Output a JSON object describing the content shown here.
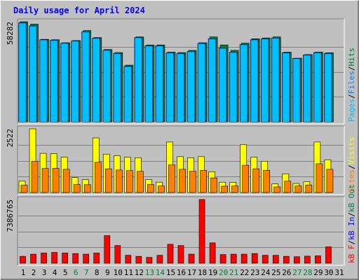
{
  "chart_data": [
    {
      "type": "bar",
      "title": "Daily usage for April 2024",
      "panel": "hits-files-pages",
      "ytick": "58282",
      "ylabel_parts": [
        "Pages",
        "Files",
        "Hits"
      ],
      "categories": [
        "1",
        "2",
        "3",
        "4",
        "5",
        "6",
        "7",
        "8",
        "9",
        "10",
        "11",
        "12",
        "13",
        "14",
        "15",
        "16",
        "17",
        "18",
        "19",
        "20",
        "21",
        "22",
        "23",
        "24",
        "25",
        "26",
        "27",
        "28",
        "29",
        "30",
        "31"
      ],
      "ylim": [
        0,
        58282
      ],
      "series": [
        {
          "name": "Hits",
          "values": [
            58282,
            56882,
            48020,
            47786,
            46036,
            47320,
            53152,
            49070,
            42072,
            40322,
            33000,
            49420,
            44752,
            44752,
            40554,
            40322,
            41604,
            46036,
            49420,
            44752,
            41604,
            45802,
            48370,
            48836,
            49420,
            40554,
            37054,
            39154,
            40554,
            40204,
            0
          ]
        },
        {
          "name": "Files",
          "values": [
            57582,
            55832,
            47786,
            47552,
            45802,
            47086,
            52452,
            48720,
            41722,
            39854,
            32300,
            49070,
            44286,
            44286,
            40204,
            39854,
            41020,
            45686,
            48370,
            42886,
            40554,
            44986,
            47786,
            48370,
            48836,
            40204,
            36936,
            38920,
            40322,
            39854,
            0
          ]
        },
        {
          "name": "Pages",
          "values": [
            57582,
            55832,
            47786,
            47552,
            45802,
            47086,
            52452,
            48720,
            41722,
            39854,
            32300,
            49070,
            44286,
            44286,
            40204,
            39854,
            41020,
            45686,
            48370,
            42886,
            40554,
            44986,
            47786,
            48370,
            48836,
            40204,
            36936,
            38920,
            40322,
            39854,
            0
          ]
        }
      ],
      "colors": {
        "Hits": "#008040",
        "Files": "#0080ff",
        "Pages": "#00c0ff"
      }
    },
    {
      "type": "bar",
      "panel": "visits-sites",
      "ytick": "2522",
      "ylabel_parts": [
        "Sites",
        "Visits"
      ],
      "categories": [
        "1",
        "2",
        "3",
        "4",
        "5",
        "6",
        "7",
        "8",
        "9",
        "10",
        "11",
        "12",
        "13",
        "14",
        "15",
        "16",
        "17",
        "18",
        "19",
        "20",
        "21",
        "22",
        "23",
        "24",
        "25",
        "26",
        "27",
        "28",
        "29",
        "30",
        "31"
      ],
      "ylim": [
        0,
        2522
      ],
      "series": [
        {
          "name": "Visits",
          "values": [
            450,
            2522,
            1550,
            1538,
            1400,
            590,
            510,
            2160,
            1518,
            1450,
            1398,
            1378,
            510,
            410,
            1998,
            1418,
            1378,
            1418,
            820,
            410,
            400,
            1891,
            1398,
            1238,
            340,
            740,
            358,
            430,
            1998,
            1298,
            0
          ]
        },
        {
          "name": "Sites",
          "values": [
            290,
            1238,
            950,
            958,
            918,
            318,
            310,
            1198,
            938,
            890,
            868,
            838,
            318,
            258,
            1098,
            918,
            838,
            878,
            578,
            250,
            258,
            1078,
            938,
            878,
            220,
            448,
            258,
            298,
            1138,
            918,
            0
          ]
        }
      ],
      "colors": {
        "Visits": "#ffff00",
        "Sites": "#ff8000"
      }
    },
    {
      "type": "bar",
      "panel": "kbytes",
      "ytick": "7386765",
      "ylabel_parts": [
        "kB F",
        "kB In",
        "kB Out"
      ],
      "categories": [
        "1",
        "2",
        "3",
        "4",
        "5",
        "6",
        "7",
        "8",
        "9",
        "10",
        "11",
        "12",
        "13",
        "14",
        "15",
        "16",
        "17",
        "18",
        "19",
        "20",
        "21",
        "22",
        "23",
        "24",
        "25",
        "26",
        "27",
        "28",
        "29",
        "30",
        "31"
      ],
      "ylim": [
        0,
        7386765
      ],
      "series": [
        {
          "name": "kB F",
          "values": [
            800000,
            1050000,
            1180000,
            1250000,
            1180000,
            1120000,
            1050000,
            1180000,
            3200000,
            2050000,
            920000,
            800000,
            680000,
            920000,
            2200000,
            2050000,
            1050000,
            7386765,
            2360000,
            1000000,
            1050000,
            1050000,
            1120000,
            920000,
            920000,
            800000,
            750000,
            820000,
            860000,
            1900000,
            0
          ]
        }
      ],
      "colors": {
        "kB F": "#ff0000"
      }
    }
  ],
  "xlabels": [
    {
      "text": "1",
      "weekend": false
    },
    {
      "text": "2",
      "weekend": false
    },
    {
      "text": "3",
      "weekend": false
    },
    {
      "text": "4",
      "weekend": false
    },
    {
      "text": "5",
      "weekend": false
    },
    {
      "text": "6",
      "weekend": true
    },
    {
      "text": "7",
      "weekend": true
    },
    {
      "text": "8",
      "weekend": false
    },
    {
      "text": "9",
      "weekend": false
    },
    {
      "text": "10",
      "weekend": false
    },
    {
      "text": "11",
      "weekend": false
    },
    {
      "text": "12",
      "weekend": false
    },
    {
      "text": "13",
      "weekend": true
    },
    {
      "text": "14",
      "weekend": true
    },
    {
      "text": "15",
      "weekend": false
    },
    {
      "text": "16",
      "weekend": false
    },
    {
      "text": "17",
      "weekend": false
    },
    {
      "text": "18",
      "weekend": false
    },
    {
      "text": "19",
      "weekend": false
    },
    {
      "text": "20",
      "weekend": true
    },
    {
      "text": "21",
      "weekend": true
    },
    {
      "text": "22",
      "weekend": false
    },
    {
      "text": "23",
      "weekend": false
    },
    {
      "text": "24",
      "weekend": false
    },
    {
      "text": "25",
      "weekend": false
    },
    {
      "text": "26",
      "weekend": false
    },
    {
      "text": "27",
      "weekend": true
    },
    {
      "text": "28",
      "weekend": true
    },
    {
      "text": "29",
      "weekend": false
    },
    {
      "text": "30",
      "weekend": false
    },
    {
      "text": "31",
      "weekend": false
    }
  ],
  "palette": {
    "background": "#c0c0c0",
    "frame_light": "#ffffff",
    "frame_dark": "#808080",
    "title": "#0000ff",
    "ytick": "#000000",
    "grid": "#808080",
    "weekday_label": "#000000",
    "weekend_label": "#008040",
    "label_pages": "#00c0ff",
    "label_files": "#0080ff",
    "label_hits": "#008040",
    "label_sites": "#ff8000",
    "label_visits": "#ffff00",
    "label_kbf": "#ff0000",
    "label_kbin": "#0000ff",
    "label_kbout": "#008040",
    "separator": "#000000"
  }
}
